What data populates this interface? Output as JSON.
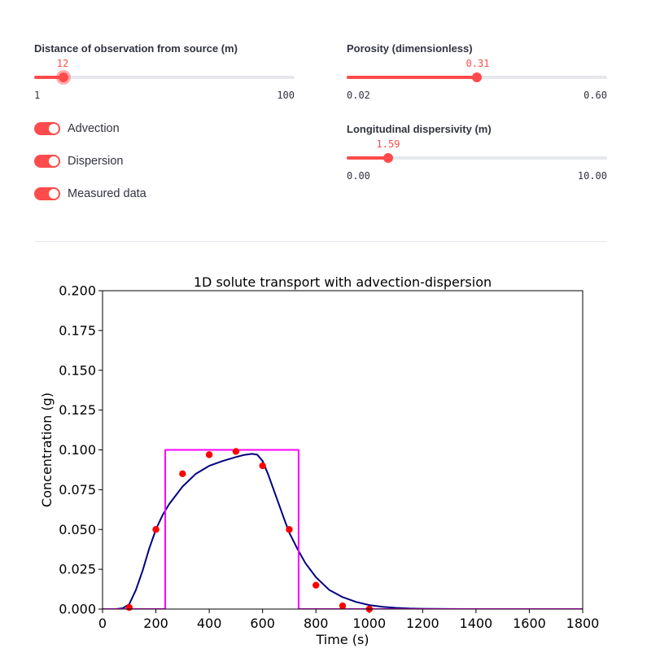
{
  "sliders": [
    {
      "id": "distance",
      "label": "Distance of observation from source (m)",
      "value": 12,
      "value_text": "12",
      "min": 1,
      "max": 100,
      "min_text": "1",
      "max_text": "100",
      "focused": true
    },
    {
      "id": "porosity",
      "label": "Porosity (dimensionless)",
      "value": 0.31,
      "value_text": "0.31",
      "min": 0.02,
      "max": 0.6,
      "min_text": "0.02",
      "max_text": "0.60",
      "focused": false
    },
    {
      "id": "dispersivity",
      "label": "Longitudinal dispersivity (m)",
      "value": 1.59,
      "value_text": "1.59",
      "min": 0.0,
      "max": 10.0,
      "min_text": "0.00",
      "max_text": "10.00",
      "focused": false
    }
  ],
  "toggles": [
    {
      "label": "Advection",
      "on": true
    },
    {
      "label": "Dispersion",
      "on": true
    },
    {
      "label": "Measured data",
      "on": true
    }
  ],
  "colors": {
    "accent": "#ff4b4b",
    "curve": "#000080",
    "pulse": "#ff00ff",
    "points": "#ff0000",
    "track": "#e6e8ee"
  },
  "chart_data": {
    "type": "line",
    "title": "1D solute transport with advection-dispersion",
    "xlabel": "Time (s)",
    "ylabel": "Concentration (g)",
    "xlim": [
      0,
      1800
    ],
    "ylim": [
      0,
      0.2
    ],
    "xticks": [
      0,
      200,
      400,
      600,
      800,
      1000,
      1200,
      1400,
      1600,
      1800
    ],
    "xtick_labels": [
      "0",
      "200",
      "400",
      "600",
      "800",
      "1000",
      "1200",
      "1400",
      "1600",
      "1800"
    ],
    "yticks": [
      0,
      0.025,
      0.05,
      0.075,
      0.1,
      0.125,
      0.15,
      0.175,
      0.2
    ],
    "ytick_labels": [
      "0.000",
      "0.025",
      "0.050",
      "0.075",
      "0.100",
      "0.125",
      "0.150",
      "0.175",
      "0.200"
    ],
    "grid": false,
    "series": [
      {
        "kind": "line",
        "color": "#000080",
        "x": [
          0,
          50,
          75,
          100,
          125,
          150,
          175,
          200,
          225,
          250,
          300,
          350,
          400,
          450,
          500,
          530,
          560,
          580,
          600,
          620,
          650,
          680,
          700,
          730,
          760,
          800,
          850,
          900,
          950,
          1000,
          1050,
          1100,
          1150,
          1200,
          1300,
          1400,
          1500,
          1600,
          1800
        ],
        "y": [
          0,
          0,
          0.0005,
          0.003,
          0.012,
          0.024,
          0.038,
          0.05,
          0.059,
          0.066,
          0.077,
          0.085,
          0.09,
          0.093,
          0.0955,
          0.0968,
          0.0975,
          0.097,
          0.093,
          0.085,
          0.071,
          0.057,
          0.048,
          0.038,
          0.029,
          0.02,
          0.012,
          0.0075,
          0.0045,
          0.0025,
          0.0014,
          0.0008,
          0.0004,
          0.0002,
          5e-05,
          0,
          0,
          0,
          0
        ]
      },
      {
        "kind": "step",
        "color": "#ff00ff",
        "x": [
          0,
          235,
          235,
          735,
          735,
          1800
        ],
        "y": [
          0,
          0,
          0.1,
          0.1,
          0,
          0
        ]
      },
      {
        "kind": "scatter",
        "color": "#ff0000",
        "x": [
          100,
          200,
          300,
          400,
          500,
          600,
          700,
          800,
          900,
          1000
        ],
        "y": [
          0.001,
          0.05,
          0.085,
          0.097,
          0.099,
          0.09,
          0.05,
          0.015,
          0.002,
          0.0
        ]
      }
    ]
  }
}
